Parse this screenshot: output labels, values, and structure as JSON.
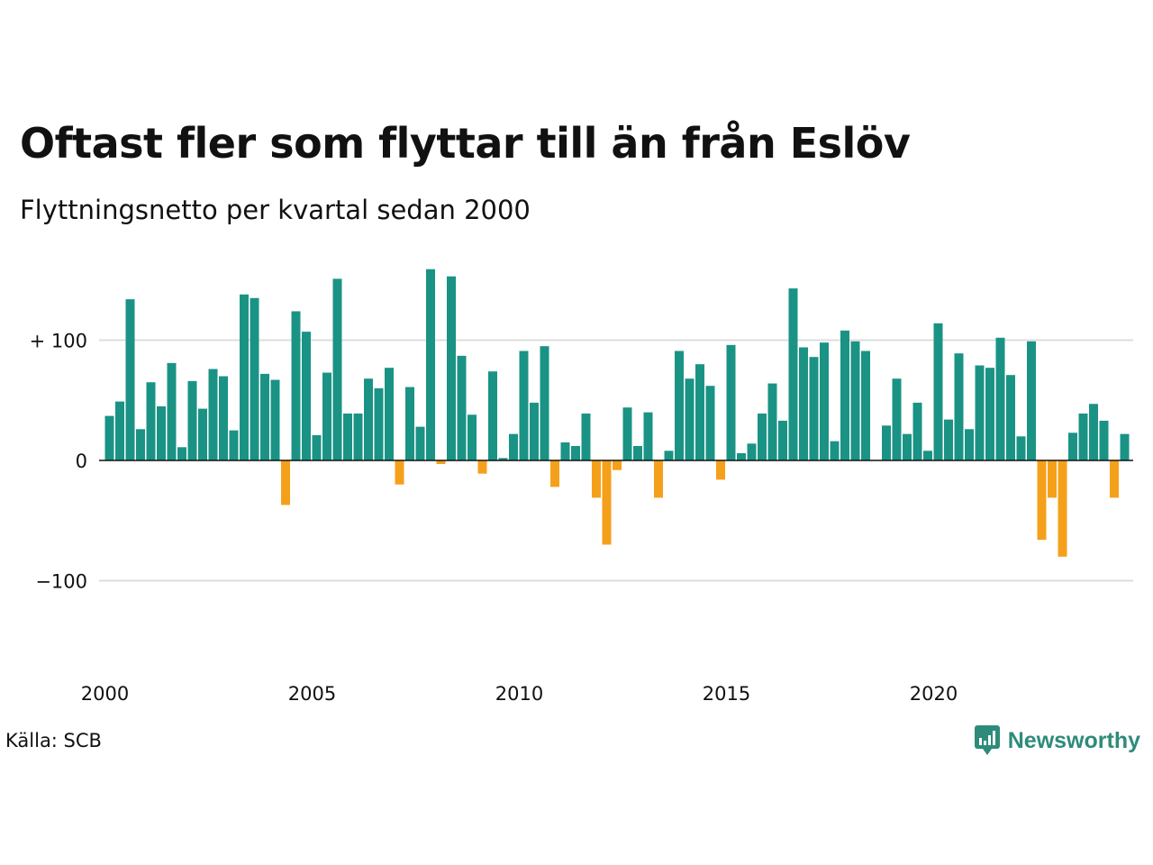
{
  "header": {
    "title": "Oftast fler som flyttar till än från Eslöv",
    "subtitle": "Flyttningsnetto per kvartal sedan 2000"
  },
  "footer": {
    "source": "Källa: SCB",
    "brand": "Newsworthy"
  },
  "colors": {
    "positive": "#1a9385",
    "negative": "#f5a01a",
    "gridline": "#dddddd",
    "zero_line": "#111111",
    "brand": "#2e8b7a"
  },
  "chart_data": {
    "type": "bar",
    "title": "Oftast fler som flyttar till än från Eslöv",
    "subtitle": "Flyttningsnetto per kvartal sedan 2000",
    "xlabel": "",
    "ylabel": "",
    "x_tick_labels": [
      "2000",
      "2005",
      "2010",
      "2015",
      "2020"
    ],
    "x_tick_years": [
      2000,
      2005,
      2010,
      2015,
      2020
    ],
    "y_ticks": [
      {
        "value": 100,
        "label": "+ 100"
      },
      {
        "value": 0,
        "label": "0"
      },
      {
        "value": -100,
        "label": "−100"
      }
    ],
    "ylim": [
      -175,
      170
    ],
    "grid": true,
    "legend": "none",
    "start": "2000 Q1",
    "values": [
      37,
      49,
      134,
      26,
      65,
      45,
      81,
      11,
      66,
      43,
      76,
      70,
      25,
      138,
      135,
      72,
      67,
      -37,
      124,
      107,
      21,
      73,
      151,
      39,
      39,
      68,
      60,
      77,
      -20,
      61,
      28,
      159,
      -3,
      153,
      87,
      38,
      -11,
      74,
      2,
      22,
      91,
      48,
      95,
      -22,
      15,
      12,
      39,
      -31,
      -70,
      -8,
      44,
      12,
      40,
      -31,
      8,
      91,
      68,
      80,
      62,
      -16,
      96,
      6,
      14,
      39,
      64,
      33,
      143,
      94,
      86,
      98,
      16,
      108,
      99,
      91,
      0,
      29,
      68,
      22,
      48,
      8,
      114,
      34,
      89,
      26,
      79,
      77,
      102,
      71,
      20,
      99,
      -66,
      -31,
      -80,
      23,
      39,
      47,
      33,
      -31,
      22
    ]
  }
}
